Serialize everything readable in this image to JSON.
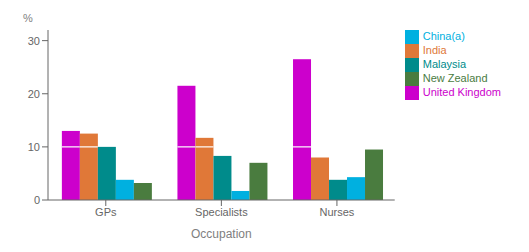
{
  "chart_data": {
    "type": "bar",
    "categories": [
      "GPs",
      "Specialists",
      "Nurses"
    ],
    "series": [
      {
        "name": "United Kingdom",
        "color": "#cc00cc",
        "values": [
          13.0,
          21.5,
          26.5
        ]
      },
      {
        "name": "India",
        "color": "#e07838",
        "values": [
          12.5,
          11.7,
          8.0
        ]
      },
      {
        "name": "Malaysia",
        "color": "#008b8b",
        "values": [
          10.0,
          8.3,
          3.8
        ]
      },
      {
        "name": "China(a)",
        "color": "#00b0e0",
        "values": [
          3.8,
          1.7,
          4.3
        ]
      },
      {
        "name": "New Zealand",
        "color": "#4a7c3f",
        "values": [
          3.2,
          7.0,
          9.5
        ]
      }
    ],
    "xlabel": "Occupation",
    "annotation": "%",
    "ylim": [
      0,
      32
    ],
    "yticks": [
      0,
      10,
      20,
      30
    ],
    "hline": {
      "y": 10,
      "color": "#ffffff"
    },
    "legend": "upper right",
    "grid": false
  }
}
